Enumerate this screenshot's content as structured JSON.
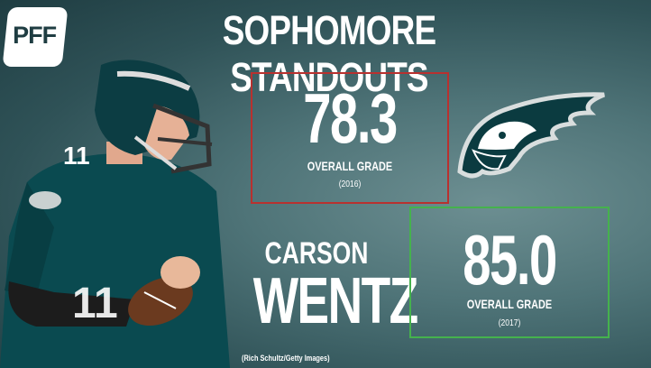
{
  "brand": {
    "logo_text": "PFF"
  },
  "title": "SOPHOMORE STANDOUTS",
  "grades": [
    {
      "value": "78.3",
      "label": "OVERALL GRADE",
      "year": "(2016)",
      "border_color": "#b8312f"
    },
    {
      "value": "85.0",
      "label": "OVERALL GRADE",
      "year": "(2017)",
      "border_color": "#45b24d"
    }
  ],
  "player": {
    "first_name": "CARSON",
    "last_name": "WENTZ",
    "jersey_number": "11"
  },
  "team_logo": "eagles-logo",
  "photo_credit": "(Rich Schultz/Getty Images)",
  "colors": {
    "team_green": "#004c54",
    "background": "#4f7478"
  }
}
